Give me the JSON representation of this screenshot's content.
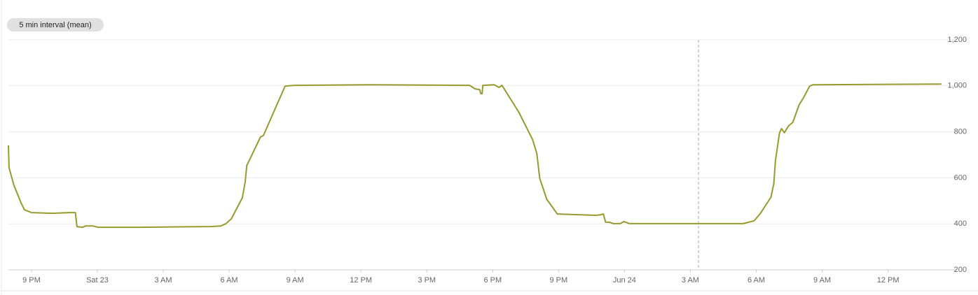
{
  "chart_data": {
    "type": "line",
    "badge": "5 min interval (mean)",
    "series": [
      {
        "name": "5 min interval (mean)",
        "color": "#979a2c",
        "x": [
          -1.05,
          -1.02,
          -0.8,
          -0.48,
          -0.32,
          0,
          0.96,
          1.76,
          2.0,
          2.07,
          2.33,
          2.46,
          2.8,
          3.03,
          4.95,
          8.14,
          8.62,
          8.84,
          9.1,
          9.6,
          9.73,
          9.8,
          10.43,
          10.56,
          11.17,
          11.55,
          11.97,
          15.48,
          19.95,
          20.2,
          20.4,
          20.46,
          20.52,
          20.55,
          21.07,
          21.29,
          21.42,
          22.18,
          22.82,
          23.01,
          23.14,
          23.46,
          23.94,
          25.7,
          25.95,
          26.04,
          26.14,
          26.33,
          26.49,
          26.81,
          26.97,
          27.23,
          30.48,
          32.4,
          32.9,
          33.19,
          33.67,
          33.8,
          33.87,
          34.06,
          34.15,
          34.28,
          34.47,
          34.66,
          34.95,
          35.15,
          35.43,
          35.59,
          41.43
        ],
        "values": [
          741,
          644,
          568,
          492,
          461,
          449,
          446,
          449,
          449,
          388,
          385,
          391,
          391,
          385,
          385,
          388,
          391,
          400,
          422,
          513,
          583,
          653,
          778,
          784,
          917,
          999,
          1002,
          1005,
          1002,
          987,
          984,
          966,
          966,
          1002,
          1005,
          993,
          1002,
          887,
          765,
          705,
          598,
          507,
          443,
          437,
          440,
          443,
          407,
          407,
          401,
          401,
          410,
          401,
          401,
          401,
          413,
          446,
          516,
          577,
          674,
          796,
          814,
          796,
          826,
          841,
          917,
          948,
          999,
          1005,
          1008
        ]
      }
    ],
    "xlim": [
      -1.05,
      41.5
    ],
    "xticks": [
      {
        "value": 0,
        "label": "9 PM"
      },
      {
        "value": 3,
        "label": "Sat 23"
      },
      {
        "value": 6,
        "label": "3 AM"
      },
      {
        "value": 9,
        "label": "6 AM"
      },
      {
        "value": 12,
        "label": "9 AM"
      },
      {
        "value": 15,
        "label": "12 PM"
      },
      {
        "value": 18,
        "label": "3 PM"
      },
      {
        "value": 21,
        "label": "6 PM"
      },
      {
        "value": 24,
        "label": "9 PM"
      },
      {
        "value": 27,
        "label": "Jun 24"
      },
      {
        "value": 30,
        "label": "3 AM"
      },
      {
        "value": 33,
        "label": "6 AM"
      },
      {
        "value": 36,
        "label": "9 AM"
      },
      {
        "value": 39,
        "label": "12 PM"
      }
    ],
    "ylim": [
      200,
      1200
    ],
    "yticks": [
      200,
      400,
      600,
      800,
      {
        "value": 1000,
        "label": "1,000"
      },
      {
        "value": 1200,
        "label": "1,200"
      }
    ],
    "grid": true
  }
}
